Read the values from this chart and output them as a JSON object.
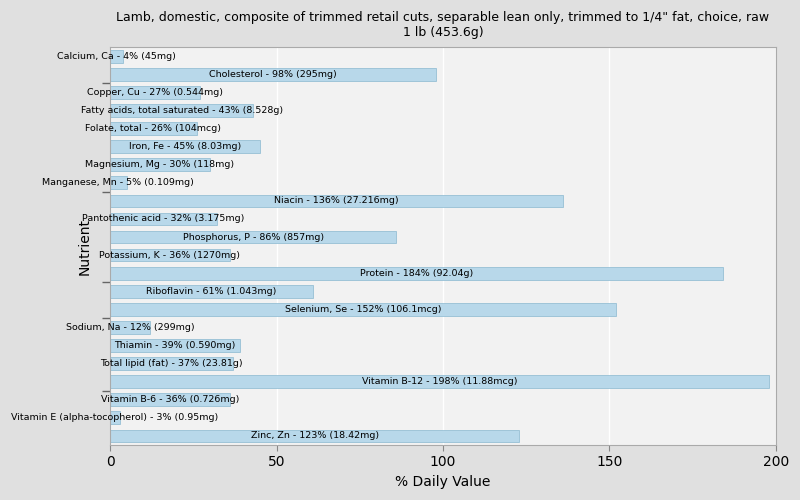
{
  "title": "Lamb, domestic, composite of trimmed retail cuts, separable lean only, trimmed to 1/4\" fat, choice, raw\n1 lb (453.6g)",
  "xlabel": "% Daily Value",
  "ylabel": "Nutrient",
  "xlim": [
    0,
    200
  ],
  "xticks": [
    0,
    50,
    100,
    150,
    200
  ],
  "bar_color": "#b8d8ea",
  "bar_edge_color": "#8ab8d0",
  "background_color": "#e0e0e0",
  "plot_bg_color": "#f2f2f2",
  "nutrients": [
    {
      "name": "Calcium, Ca - 4% (45mg)",
      "value": 4
    },
    {
      "name": "Cholesterol - 98% (295mg)",
      "value": 98
    },
    {
      "name": "Copper, Cu - 27% (0.544mg)",
      "value": 27
    },
    {
      "name": "Fatty acids, total saturated - 43% (8.528g)",
      "value": 43
    },
    {
      "name": "Folate, total - 26% (104mcg)",
      "value": 26
    },
    {
      "name": "Iron, Fe - 45% (8.03mg)",
      "value": 45
    },
    {
      "name": "Magnesium, Mg - 30% (118mg)",
      "value": 30
    },
    {
      "name": "Manganese, Mn - 5% (0.109mg)",
      "value": 5
    },
    {
      "name": "Niacin - 136% (27.216mg)",
      "value": 136
    },
    {
      "name": "Pantothenic acid - 32% (3.175mg)",
      "value": 32
    },
    {
      "name": "Phosphorus, P - 86% (857mg)",
      "value": 86
    },
    {
      "name": "Potassium, K - 36% (1270mg)",
      "value": 36
    },
    {
      "name": "Protein - 184% (92.04g)",
      "value": 184
    },
    {
      "name": "Riboflavin - 61% (1.043mg)",
      "value": 61
    },
    {
      "name": "Selenium, Se - 152% (106.1mcg)",
      "value": 152
    },
    {
      "name": "Sodium, Na - 12% (299mg)",
      "value": 12
    },
    {
      "name": "Thiamin - 39% (0.590mg)",
      "value": 39
    },
    {
      "name": "Total lipid (fat) - 37% (23.81g)",
      "value": 37
    },
    {
      "name": "Vitamin B-12 - 198% (11.88mcg)",
      "value": 198
    },
    {
      "name": "Vitamin B-6 - 36% (0.726mg)",
      "value": 36
    },
    {
      "name": "Vitamin E (alpha-tocopherol) - 3% (0.95mg)",
      "value": 3
    },
    {
      "name": "Zinc, Zn - 123% (18.42mg)",
      "value": 123
    }
  ]
}
